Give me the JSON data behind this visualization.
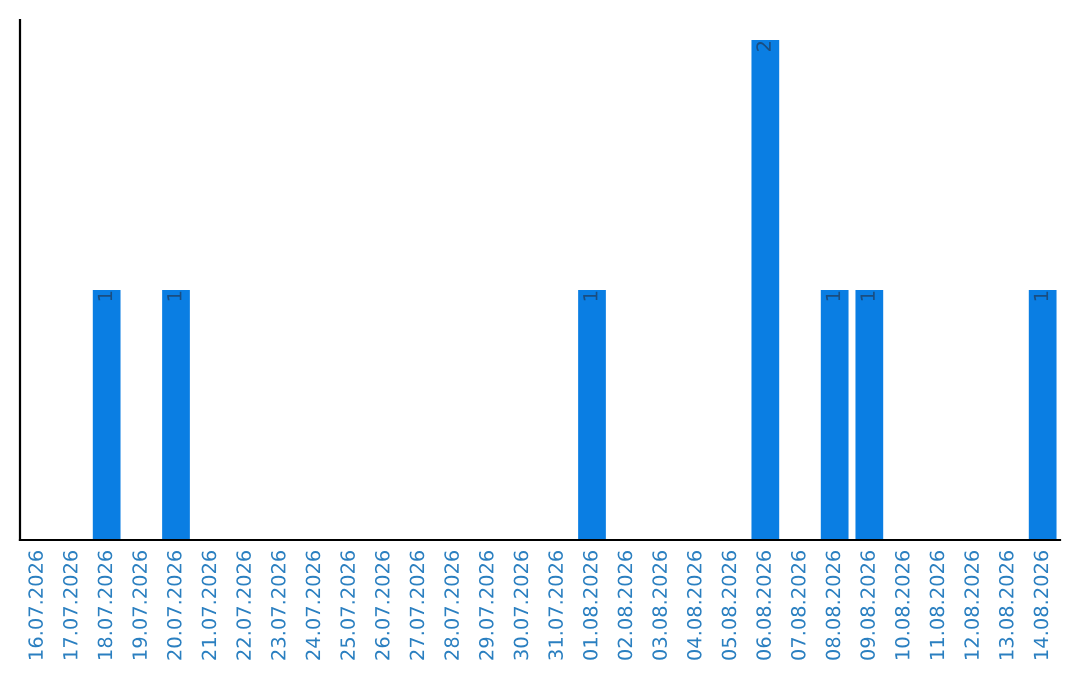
{
  "chart_data": {
    "type": "bar",
    "categories": [
      "16.07.2026",
      "17.07.2026",
      "18.07.2026",
      "19.07.2026",
      "20.07.2026",
      "21.07.2026",
      "22.07.2026",
      "23.07.2026",
      "24.07.2026",
      "25.07.2026",
      "26.07.2026",
      "27.07.2026",
      "28.07.2026",
      "29.07.2026",
      "30.07.2026",
      "31.07.2026",
      "01.08.2026",
      "02.08.2026",
      "03.08.2026",
      "04.08.2026",
      "05.08.2026",
      "06.08.2026",
      "07.08.2026",
      "08.08.2026",
      "09.08.2026",
      "10.08.2026",
      "11.08.2026",
      "12.08.2026",
      "13.08.2026",
      "14.08.2026"
    ],
    "values": [
      0,
      0,
      1,
      0,
      1,
      0,
      0,
      0,
      0,
      0,
      0,
      0,
      0,
      0,
      0,
      0,
      1,
      0,
      0,
      0,
      0,
      2,
      0,
      1,
      1,
      0,
      0,
      0,
      0,
      1
    ],
    "value_labels": [
      null,
      null,
      "1",
      null,
      "1",
      null,
      null,
      null,
      null,
      null,
      null,
      null,
      null,
      null,
      null,
      null,
      "1",
      null,
      null,
      null,
      null,
      "2",
      null,
      "1",
      "1",
      null,
      null,
      null,
      null,
      "1"
    ],
    "color": "#0a7ee3",
    "ylim": [
      0,
      2.08
    ],
    "tick_labels": "x",
    "grid": false,
    "legend": false
  }
}
